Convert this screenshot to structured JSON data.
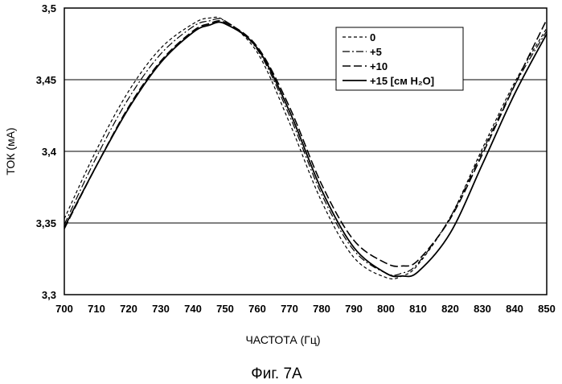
{
  "chart_data": {
    "type": "line",
    "xlabel": "ЧАСТОТА (Гц)",
    "ylabel": "ТОК (мА)",
    "caption": "Фиг. 7А",
    "xlim": [
      700,
      850
    ],
    "ylim": [
      3.3,
      3.5
    ],
    "x_ticks": [
      "700",
      "710",
      "720",
      "730",
      "740",
      "750",
      "760",
      "770",
      "780",
      "790",
      "800",
      "810",
      "820",
      "830",
      "840",
      "850"
    ],
    "y_ticks": [
      "3,3",
      "3,35",
      "3,4",
      "3,45",
      "3,5"
    ],
    "grid": "horizontal",
    "legend_position": "top-right",
    "series": [
      {
        "name": "0",
        "dash": "short-dash",
        "x": [
          700,
          710,
          720,
          730,
          740,
          745,
          750,
          760,
          770,
          780,
          790,
          800,
          805,
          810,
          820,
          830,
          840,
          850
        ],
        "y": [
          3.353,
          3.401,
          3.442,
          3.472,
          3.489,
          3.493,
          3.491,
          3.469,
          3.42,
          3.365,
          3.326,
          3.312,
          3.313,
          3.321,
          3.354,
          3.402,
          3.448,
          3.486
        ]
      },
      {
        "name": "+5",
        "dash": "dash-dot",
        "x": [
          700,
          710,
          720,
          730,
          740,
          745,
          750,
          760,
          770,
          780,
          790,
          800,
          805,
          810,
          820,
          830,
          840,
          850
        ],
        "y": [
          3.349,
          3.396,
          3.437,
          3.468,
          3.487,
          3.491,
          3.491,
          3.471,
          3.425,
          3.37,
          3.331,
          3.315,
          3.315,
          3.322,
          3.354,
          3.4,
          3.446,
          3.484
        ]
      },
      {
        "name": "+10",
        "dash": "long-dash",
        "x": [
          700,
          710,
          720,
          730,
          740,
          745,
          750,
          760,
          770,
          780,
          790,
          800,
          805,
          810,
          820,
          830,
          840,
          850
        ],
        "y": [
          3.346,
          3.39,
          3.431,
          3.463,
          3.484,
          3.489,
          3.49,
          3.473,
          3.431,
          3.377,
          3.338,
          3.322,
          3.32,
          3.324,
          3.353,
          3.398,
          3.446,
          3.492
        ]
      },
      {
        "name": "+15 [см H₂O]",
        "dash": "solid",
        "x": [
          700,
          710,
          720,
          730,
          740,
          745,
          750,
          760,
          770,
          780,
          790,
          800,
          805,
          810,
          820,
          830,
          840,
          850
        ],
        "y": [
          3.347,
          3.39,
          3.43,
          3.462,
          3.483,
          3.488,
          3.489,
          3.472,
          3.428,
          3.373,
          3.333,
          3.315,
          3.313,
          3.316,
          3.343,
          3.391,
          3.44,
          3.482
        ]
      }
    ]
  }
}
